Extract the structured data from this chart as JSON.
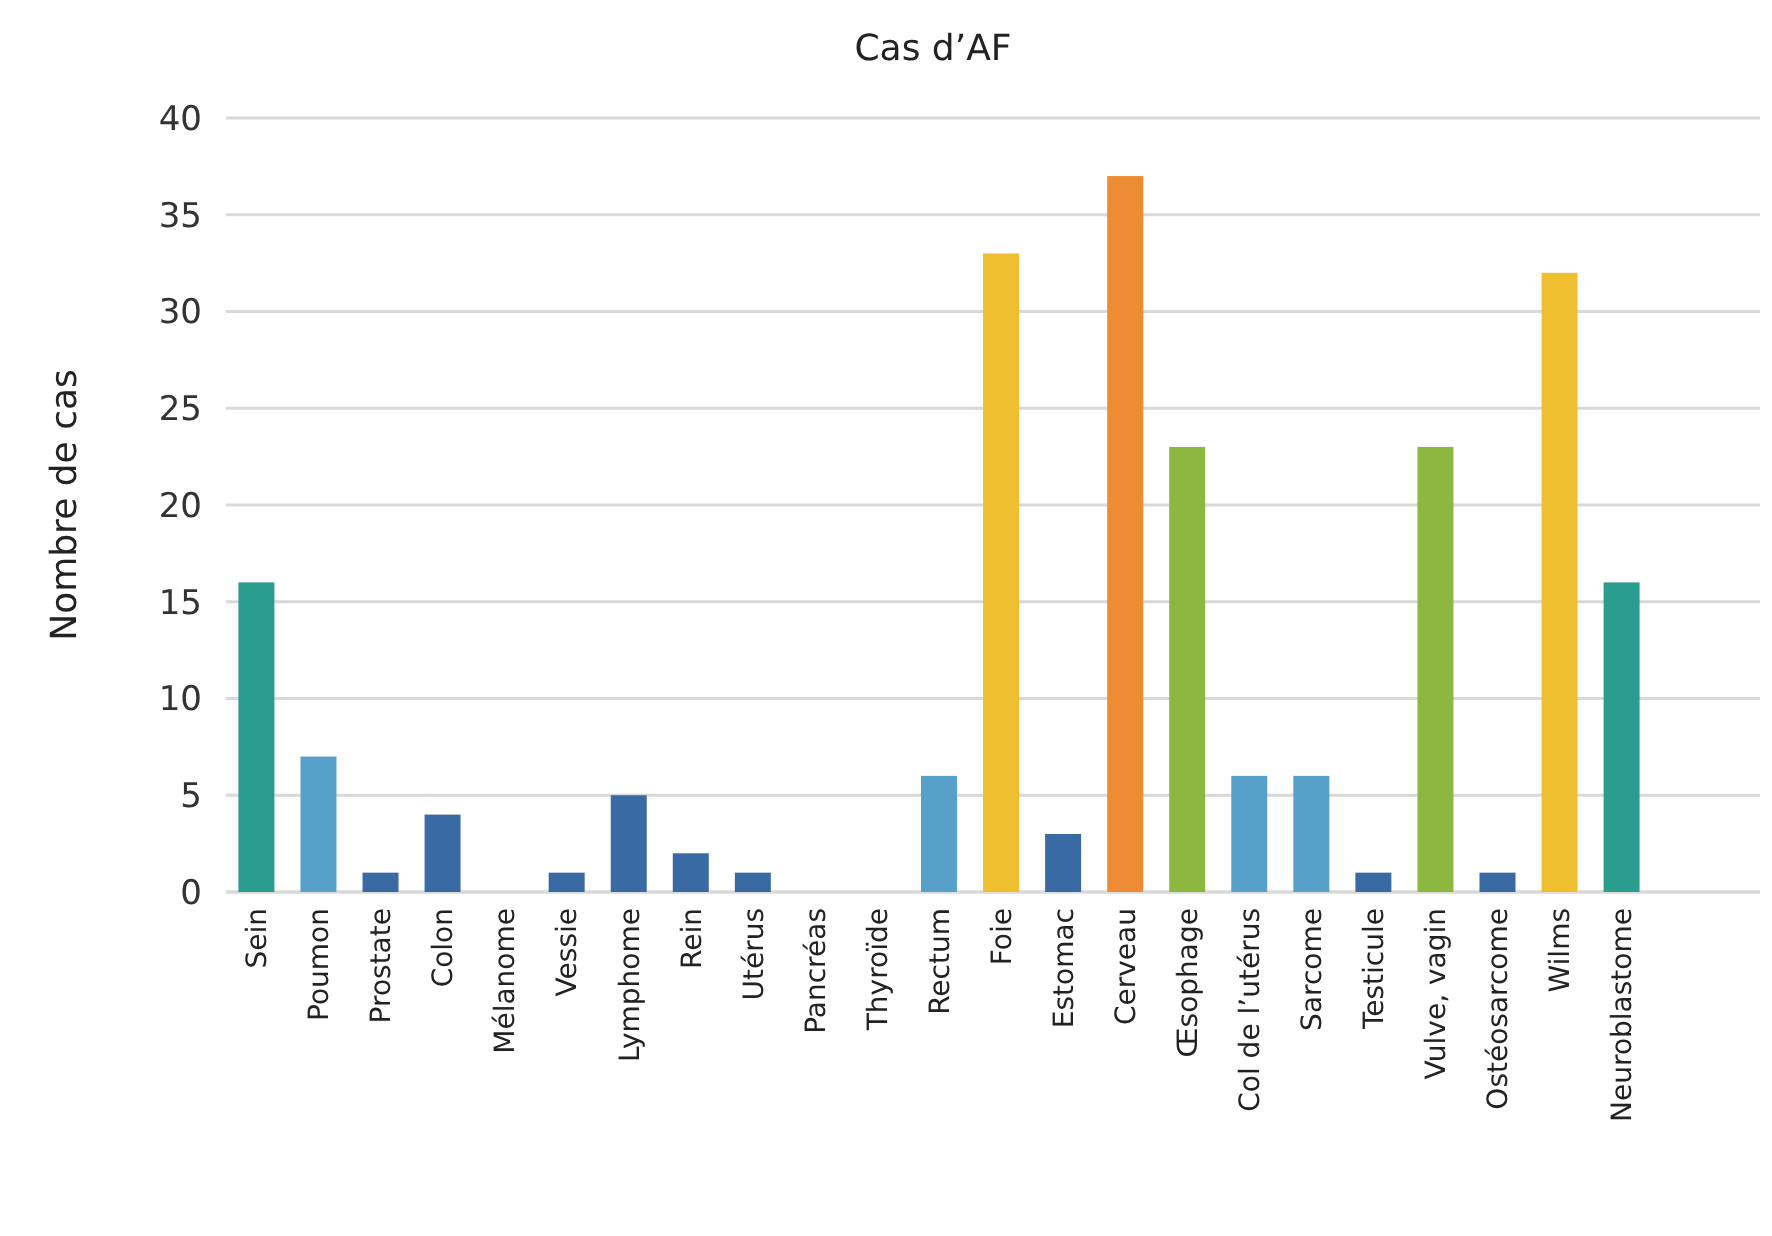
{
  "chart_data": {
    "type": "bar",
    "title": "Cas d’AF",
    "ylabel": "Nombre de cas",
    "categories": [
      "Sein",
      "Poumon",
      "Prostate",
      "Colon",
      "Mélanome",
      "Vessie",
      "Lymphome",
      "Rein",
      "Utérus",
      "Pancréas",
      "Thyroïde",
      "Rectum",
      "Foie",
      "Estomac",
      "Cerveau",
      "Œsophage",
      "Col de l’utérus",
      "Sarcome",
      "Testicule",
      "Vulve, vagin",
      "Ostéosarcome",
      "Wilms",
      "Neuroblastome"
    ],
    "values": [
      16,
      7,
      1,
      4,
      0,
      1,
      5,
      2,
      1,
      0,
      0,
      6,
      33,
      3,
      37,
      23,
      6,
      6,
      1,
      23,
      1,
      32,
      16
    ],
    "colors": [
      "#2a9d8f",
      "#56a0c9",
      "#3a6aa3",
      "#3a6aa3",
      "#3a6aa3",
      "#3a6aa3",
      "#3a6aa3",
      "#3a6aa3",
      "#3a6aa3",
      "#3a6aa3",
      "#3a6aa3",
      "#56a0c9",
      "#f0bf30",
      "#3a6aa3",
      "#ee8c35",
      "#8cb840",
      "#56a0c9",
      "#56a0c9",
      "#3a6aa3",
      "#8cb840",
      "#3a6aa3",
      "#f0bf30",
      "#2a9d8f"
    ],
    "ylim": [
      0,
      40
    ],
    "yticks": [
      0,
      5,
      10,
      15,
      20,
      25,
      30,
      35,
      40
    ],
    "grid": true
  }
}
